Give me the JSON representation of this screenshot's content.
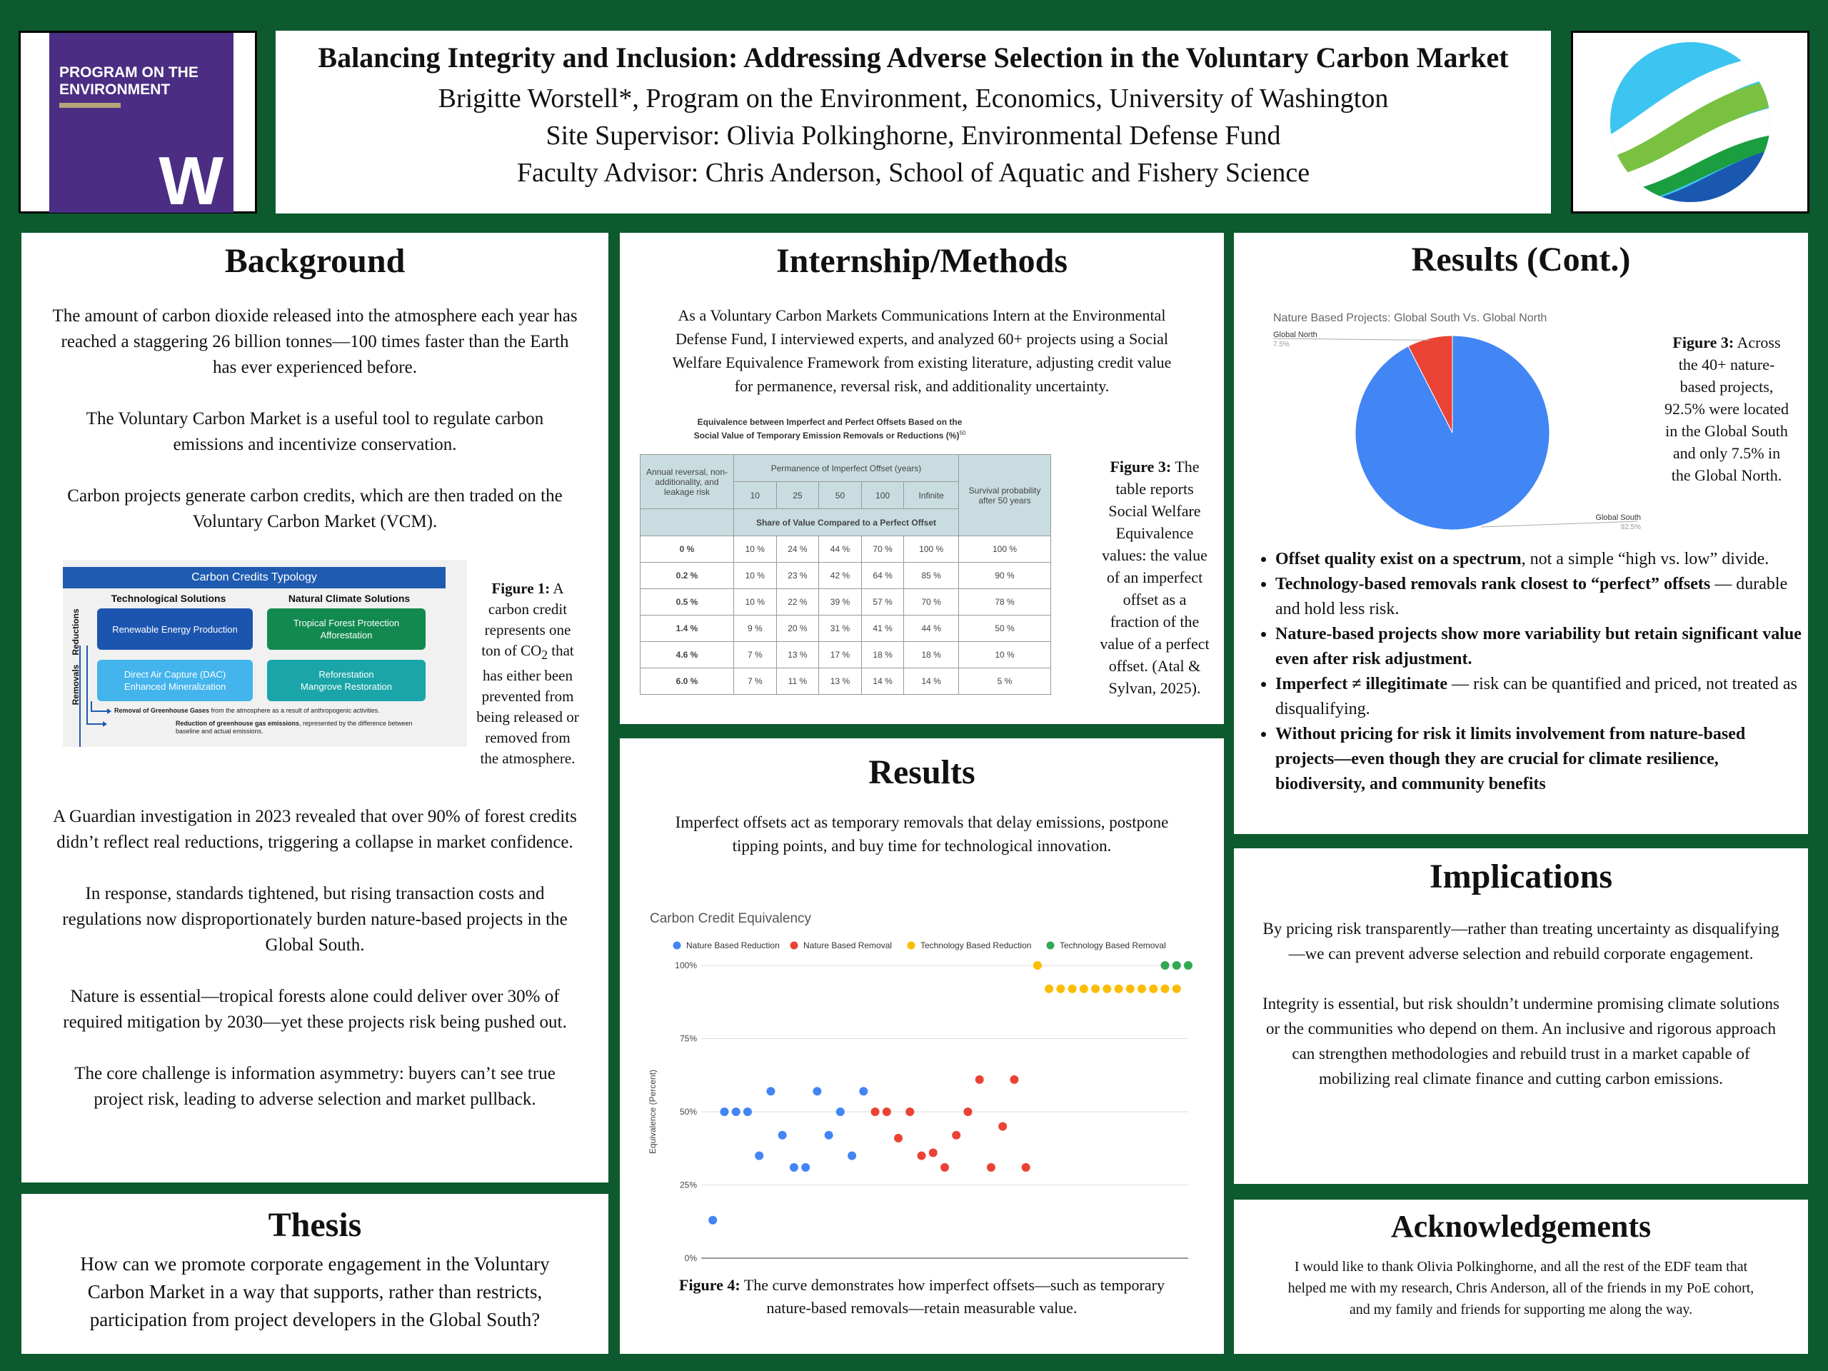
{
  "header": {
    "logo_text": "PROGRAM ON THE ENVIRONMENT",
    "logo_letter": "W",
    "title": "Balancing Integrity and Inclusion: Addressing Adverse Selection in the Voluntary Carbon Market",
    "author": "Brigitte Worstell*, Program on the Environment, Economics, University of Washington",
    "supervisor": "Site Supervisor: Olivia Polkinghorne, Environmental Defense Fund",
    "advisor": "Faculty Advisor: Chris Anderson, School of Aquatic and Fishery Science"
  },
  "background": {
    "heading": "Background",
    "p1": "The amount of carbon dioxide released into the atmosphere each year has reached a staggering 26 billion tonnes—100 times faster than the Earth has ever experienced before.",
    "p2": "The Voluntary Carbon Market is a useful tool to regulate carbon emissions and incentivize conservation.",
    "p3": "Carbon projects generate carbon credits, which are then traded on the Voluntary Carbon Market (VCM).",
    "p4": "A Guardian investigation in 2023 revealed that over 90% of forest credits didn’t reflect real reductions, triggering a collapse in market confidence.",
    "p5": "In response, standards tightened, but rising transaction costs and regulations now disproportionately burden nature-based projects in the Global South.",
    "p6": "Nature is essential—tropical forests alone could deliver over 30% of required mitigation by 2030—yet these projects risk being pushed out.",
    "p7": "The core challenge is information asymmetry: buyers can’t see true project risk, leading to adverse selection and market pullback.",
    "fig1_bold": "Figure 1:",
    "fig1_a": " A carbon credit represents one ton of CO",
    "fig1_sub": "2",
    "fig1_b": " that has either been prevented from being released or removed from the atmosphere.",
    "typology": {
      "title": "Carbon Credits Typology",
      "col1": "Technological Solutions",
      "col2": "Natural Climate Solutions",
      "row1": "Reductions",
      "row2": "Removals",
      "c11": "Renewable Energy Production",
      "c12a": "Tropical Forest Protection",
      "c12b": "Afforestation",
      "c21a": "Direct Air Capture (DAC)",
      "c21b": "Enhanced Mineralization",
      "c22a": "Reforestation",
      "c22b": "Mangrove Restoration",
      "note1_bold": "Removal of Greenhouse Gases",
      "note1": " from the atmosphere as a result of anthropogenic activities.",
      "note2_bold": "Reduction of greenhouse gas emissions",
      "note2a": ", represented by the difference between",
      "note2b": "baseline and actual emissions."
    }
  },
  "thesis": {
    "heading": "Thesis",
    "text": "How can we promote corporate engagement in the Voluntary Carbon Market in a way that supports, rather than restricts, participation from project developers in the Global South?"
  },
  "methods": {
    "heading": "Internship/Methods",
    "text": "As a Voluntary Carbon Markets Communications Intern at the Environmental Defense Fund, I interviewed experts, and analyzed 60+ projects using a Social Welfare Equivalence Framework from existing literature, adjusting credit value for permanence, reversal risk, and additionality uncertainty.",
    "table_title1": "Equivalence between Imperfect and Perfect Offsets Based on the",
    "table_title2": "Social Value of Temporary Emission Removals or Reductions (%)",
    "table_title_sup": "50",
    "row_header": "Annual reversal, non-additionality, and leakage risk",
    "perm_header": "Permanence of Imperfect Offset (years)",
    "share_header": "Share of Value Compared to a Perfect Offset",
    "surv_header": "Survival probability after 50 years",
    "years": [
      "10",
      "25",
      "50",
      "100",
      "Infinite"
    ],
    "rows": [
      {
        "risk": "0 %",
        "vals": [
          "10 %",
          "24 %",
          "44 %",
          "70 %",
          "100 %"
        ],
        "surv": "100 %"
      },
      {
        "risk": "0.2 %",
        "vals": [
          "10 %",
          "23 %",
          "42 %",
          "64 %",
          "85 %"
        ],
        "surv": "90 %"
      },
      {
        "risk": "0.5 %",
        "vals": [
          "10 %",
          "22 %",
          "39 %",
          "57 %",
          "70 %"
        ],
        "surv": "78 %"
      },
      {
        "risk": "1.4 %",
        "vals": [
          "9 %",
          "20 %",
          "31 %",
          "41 %",
          "44 %"
        ],
        "surv": "50 %"
      },
      {
        "risk": "4.6 %",
        "vals": [
          "7 %",
          "13 %",
          "17 %",
          "18 %",
          "18 %"
        ],
        "surv": "10 %"
      },
      {
        "risk": "6.0 %",
        "vals": [
          "7 %",
          "11 %",
          "13 %",
          "14 %",
          "14 %"
        ],
        "surv": "5 %"
      }
    ],
    "fig_bold": "Figure 3:",
    "fig_text": " The table reports Social Welfare Equivalence values: the value of an imperfect offset as a fraction of the value of a perfect offset. (Atal & Sylvan, 2025)."
  },
  "results": {
    "heading": "Results",
    "text": "Imperfect offsets act as temporary removals that delay emissions, postpone tipping points, and buy time for technological innovation.",
    "fig_bold": "Figure 4:",
    "fig_text": " The curve demonstrates how imperfect offsets—such as temporary nature-based removals—retain measurable value."
  },
  "results_cont": {
    "heading": "Results (Cont.)",
    "fig_bold": "Figure 3:",
    "fig_text": " Across the 40+ nature-based projects, 92.5% were located in the Global South and only 7.5% in the Global North.",
    "bullets": [
      {
        "bold": "Offset quality exist on a spectrum",
        "rest": ", not a simple “high vs. low” divide."
      },
      {
        "bold": "Technology-based removals rank closest to “perfect” offsets",
        "rest": " — durable and hold less risk."
      },
      {
        "bold": "Nature-based projects show more variability but retain significant value even after risk adjustment.",
        "rest": ""
      },
      {
        "bold": "Imperfect ≠ illegitimate",
        "rest": " — risk can be quantified and priced, not treated as disqualifying."
      },
      {
        "bold": "Without pricing for risk it limits involvement from nature-based projects—even though they are crucial for climate resilience, biodiversity, and community benefits",
        "rest": ""
      }
    ]
  },
  "implications": {
    "heading": "Implications",
    "p1": "By pricing risk transparently—rather than treating uncertainty as disqualifying—we can prevent adverse selection and rebuild corporate engagement.",
    "p2": "Integrity is essential, but risk shouldn’t undermine promising climate solutions or the communities who depend on them. An inclusive and rigorous approach can strengthen methodologies and rebuild trust in a market capable of mobilizing real climate finance and cutting carbon emissions."
  },
  "acknowledgements": {
    "heading": "Acknowledgements",
    "text": "I would like to thank Olivia Polkinghorne, and all the rest of the EDF team that helped me with my research, Chris Anderson, all of the friends in my PoE cohort, and my family and friends for supporting me along the way."
  },
  "colors": {
    "uw_purple": "#4b2e83",
    "poster_green": "#0d5a2e",
    "nbr": "#4285f4",
    "nbrem": "#ea4335",
    "tbr": "#fbbc04",
    "tbrem": "#34a853"
  },
  "chart_data": [
    {
      "type": "pie",
      "title": "Nature Based Projects: Global South Vs. Global North",
      "labels": [
        "Global South",
        "Global North"
      ],
      "values": [
        92.5,
        7.5
      ],
      "value_labels": [
        "92.5%",
        "7.5%"
      ],
      "colors": [
        "#4285f4",
        "#ea4335"
      ]
    },
    {
      "type": "scatter",
      "title": "Carbon Credit Equivalency",
      "ylabel": "Equivalence (Percent)",
      "yticks": [
        "0%",
        "25%",
        "50%",
        "75%",
        "100%"
      ],
      "ylim": [
        0,
        100
      ],
      "xlim": [
        0,
        42
      ],
      "legend_position": "top",
      "grid": true,
      "series": [
        {
          "name": "Nature Based Reduction",
          "color": "#4285f4",
          "points": [
            [
              1,
              13
            ],
            [
              2,
              50
            ],
            [
              3,
              50
            ],
            [
              4,
              50
            ],
            [
              5,
              35
            ],
            [
              6,
              57
            ],
            [
              7,
              42
            ],
            [
              8,
              31
            ],
            [
              9,
              31
            ],
            [
              10,
              57
            ],
            [
              11,
              42
            ],
            [
              12,
              50
            ],
            [
              13,
              35
            ],
            [
              14,
              57
            ]
          ]
        },
        {
          "name": "Nature Based Removal",
          "color": "#ea4335",
          "points": [
            [
              15,
              50
            ],
            [
              16,
              50
            ],
            [
              17,
              41
            ],
            [
              18,
              50
            ],
            [
              19,
              35
            ],
            [
              20,
              36
            ],
            [
              21,
              31
            ],
            [
              22,
              42
            ],
            [
              23,
              50
            ],
            [
              24,
              61
            ],
            [
              25,
              31
            ],
            [
              26,
              45
            ],
            [
              27,
              61
            ],
            [
              28,
              31
            ]
          ]
        },
        {
          "name": "Technology Based Reduction",
          "color": "#fbbc04",
          "points": [
            [
              29,
              100
            ],
            [
              30,
              92
            ],
            [
              31,
              92
            ],
            [
              32,
              92
            ],
            [
              33,
              92
            ],
            [
              34,
              92
            ],
            [
              35,
              92
            ],
            [
              36,
              92
            ],
            [
              37,
              92
            ],
            [
              38,
              92
            ],
            [
              39,
              92
            ],
            [
              40,
              92
            ],
            [
              41,
              92
            ]
          ]
        },
        {
          "name": "Technology Based Removal",
          "color": "#34a853",
          "points": [
            [
              40,
              100
            ],
            [
              41,
              100
            ],
            [
              42,
              100
            ]
          ]
        }
      ]
    }
  ]
}
